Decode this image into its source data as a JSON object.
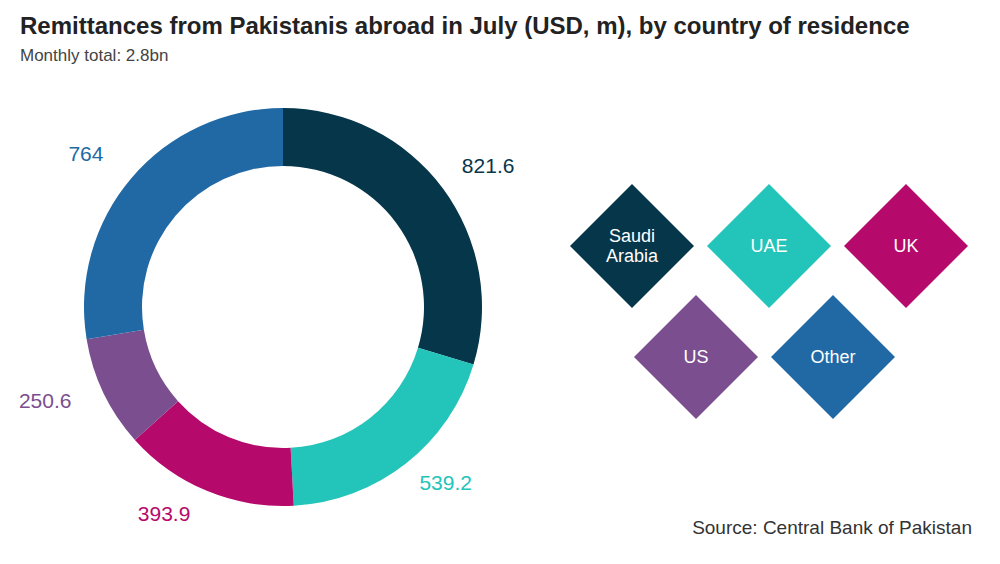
{
  "chart_data": {
    "type": "pie",
    "title": "Remittances from Pakistanis abroad in July (USD, m), by country of residence",
    "subtitle": "Monthly total: 2.8bn",
    "source": "Source: Central Bank of Pakistan",
    "categories": [
      "Saudi Arabia",
      "UAE",
      "UK",
      "US",
      "Other"
    ],
    "values": [
      821.6,
      539.2,
      393.9,
      250.6,
      764
    ],
    "colors": [
      "#06364a",
      "#23c4b9",
      "#b5096c",
      "#7a4e8f",
      "#2169a5"
    ],
    "data_labels": true,
    "legend": "right",
    "donut": true
  }
}
